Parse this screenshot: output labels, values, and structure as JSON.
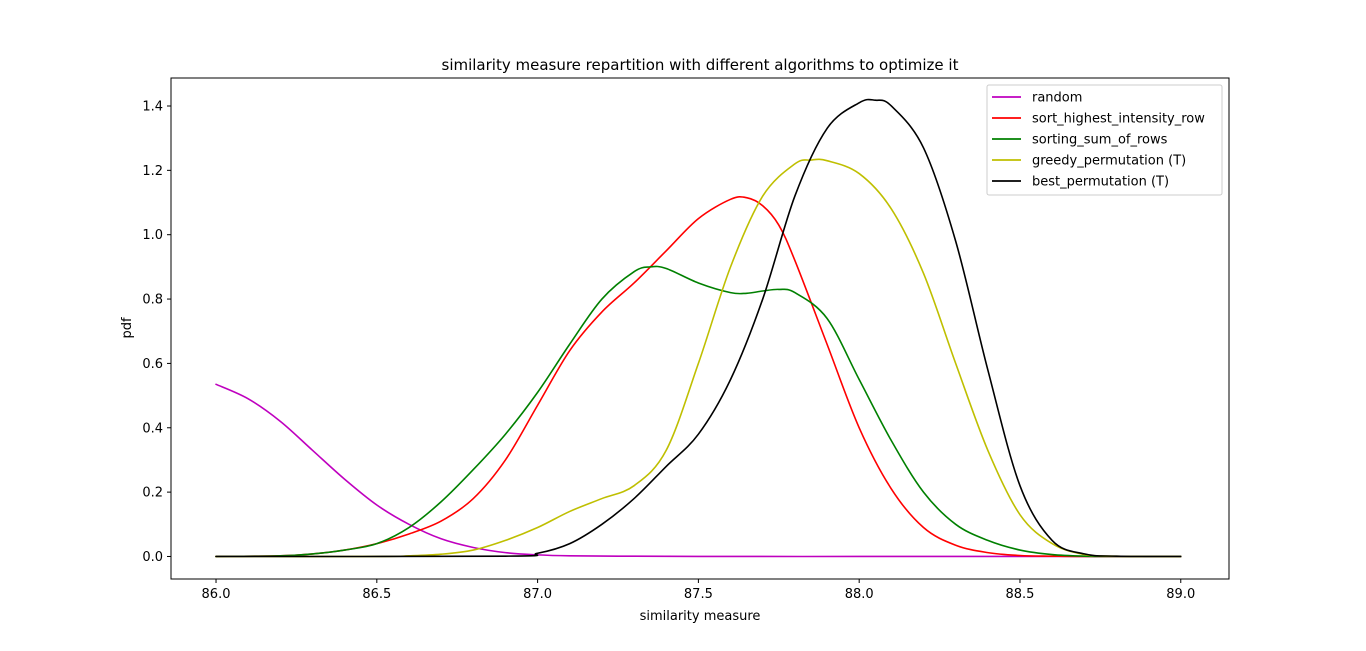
{
  "chart_data": {
    "type": "line",
    "title": "similarity measure repartition with different algorithms to optimize it",
    "xlabel": "similarity measure",
    "ylabel": "pdf",
    "xlim": [
      85.86,
      89.15
    ],
    "ylim": [
      -0.07,
      1.487
    ],
    "xticks": [
      86.0,
      86.5,
      87.0,
      87.5,
      88.0,
      88.5,
      89.0
    ],
    "xtick_labels": [
      "86.0",
      "86.5",
      "87.0",
      "87.5",
      "88.0",
      "88.5",
      "89.0"
    ],
    "yticks": [
      0.0,
      0.2,
      0.4,
      0.6,
      0.8,
      1.0,
      1.2,
      1.4
    ],
    "ytick_labels": [
      "0.0",
      "0.2",
      "0.4",
      "0.6",
      "0.8",
      "1.0",
      "1.2",
      "1.4"
    ],
    "grid": false,
    "legend_position": "top-right",
    "series": [
      {
        "name": "random",
        "color": "#bf00bf",
        "points": [
          [
            86.0,
            0.535
          ],
          [
            86.1,
            0.49
          ],
          [
            86.2,
            0.42
          ],
          [
            86.3,
            0.33
          ],
          [
            86.4,
            0.24
          ],
          [
            86.5,
            0.16
          ],
          [
            86.6,
            0.1
          ],
          [
            86.7,
            0.055
          ],
          [
            86.8,
            0.028
          ],
          [
            86.9,
            0.012
          ],
          [
            87.0,
            0.005
          ],
          [
            87.1,
            0.002
          ],
          [
            87.25,
            0.001
          ],
          [
            87.5,
            0.0
          ],
          [
            88.0,
            0.0
          ],
          [
            88.5,
            0.0
          ],
          [
            89.0,
            0.0
          ]
        ]
      },
      {
        "name": "sort_highest_intensity_row",
        "color": "#ff0000",
        "points": [
          [
            86.0,
            0.0
          ],
          [
            86.2,
            0.002
          ],
          [
            86.3,
            0.008
          ],
          [
            86.4,
            0.02
          ],
          [
            86.5,
            0.04
          ],
          [
            86.6,
            0.07
          ],
          [
            86.7,
            0.11
          ],
          [
            86.8,
            0.18
          ],
          [
            86.9,
            0.3
          ],
          [
            87.0,
            0.47
          ],
          [
            87.1,
            0.64
          ],
          [
            87.2,
            0.76
          ],
          [
            87.3,
            0.85
          ],
          [
            87.4,
            0.95
          ],
          [
            87.5,
            1.05
          ],
          [
            87.6,
            1.11
          ],
          [
            87.65,
            1.115
          ],
          [
            87.7,
            1.09
          ],
          [
            87.75,
            1.03
          ],
          [
            87.8,
            0.92
          ],
          [
            87.9,
            0.66
          ],
          [
            88.0,
            0.4
          ],
          [
            88.1,
            0.21
          ],
          [
            88.2,
            0.09
          ],
          [
            88.3,
            0.035
          ],
          [
            88.4,
            0.012
          ],
          [
            88.5,
            0.003
          ],
          [
            88.6,
            0.001
          ],
          [
            88.7,
            0.0
          ],
          [
            89.0,
            0.0
          ]
        ]
      },
      {
        "name": "sorting_sum_of_rows",
        "color": "#008000",
        "points": [
          [
            86.0,
            0.0
          ],
          [
            86.2,
            0.002
          ],
          [
            86.3,
            0.008
          ],
          [
            86.4,
            0.02
          ],
          [
            86.5,
            0.04
          ],
          [
            86.6,
            0.09
          ],
          [
            86.7,
            0.17
          ],
          [
            86.8,
            0.27
          ],
          [
            86.9,
            0.38
          ],
          [
            87.0,
            0.51
          ],
          [
            87.1,
            0.66
          ],
          [
            87.2,
            0.8
          ],
          [
            87.3,
            0.885
          ],
          [
            87.35,
            0.9
          ],
          [
            87.4,
            0.895
          ],
          [
            87.5,
            0.85
          ],
          [
            87.6,
            0.82
          ],
          [
            87.65,
            0.818
          ],
          [
            87.7,
            0.825
          ],
          [
            87.75,
            0.83
          ],
          [
            87.8,
            0.82
          ],
          [
            87.9,
            0.74
          ],
          [
            88.0,
            0.55
          ],
          [
            88.1,
            0.36
          ],
          [
            88.2,
            0.2
          ],
          [
            88.3,
            0.1
          ],
          [
            88.4,
            0.05
          ],
          [
            88.5,
            0.02
          ],
          [
            88.6,
            0.006
          ],
          [
            88.7,
            0.001
          ],
          [
            88.8,
            0.0
          ],
          [
            89.0,
            0.0
          ]
        ]
      },
      {
        "name": "greedy_permutation (T)",
        "color": "#bfbf00",
        "points": [
          [
            86.0,
            0.0
          ],
          [
            86.5,
            0.0
          ],
          [
            86.6,
            0.002
          ],
          [
            86.7,
            0.007
          ],
          [
            86.8,
            0.02
          ],
          [
            86.9,
            0.05
          ],
          [
            87.0,
            0.09
          ],
          [
            87.1,
            0.14
          ],
          [
            87.2,
            0.18
          ],
          [
            87.3,
            0.22
          ],
          [
            87.4,
            0.33
          ],
          [
            87.5,
            0.6
          ],
          [
            87.6,
            0.9
          ],
          [
            87.7,
            1.12
          ],
          [
            87.8,
            1.22
          ],
          [
            87.85,
            1.232
          ],
          [
            87.9,
            1.23
          ],
          [
            88.0,
            1.19
          ],
          [
            88.1,
            1.08
          ],
          [
            88.2,
            0.88
          ],
          [
            88.3,
            0.6
          ],
          [
            88.4,
            0.33
          ],
          [
            88.5,
            0.13
          ],
          [
            88.6,
            0.04
          ],
          [
            88.7,
            0.006
          ],
          [
            88.8,
            0.001
          ],
          [
            89.0,
            0.0
          ]
        ]
      },
      {
        "name": "best_permutation (T)",
        "color": "#000000",
        "points": [
          [
            86.0,
            0.0
          ],
          [
            86.9,
            0.001
          ],
          [
            87.0,
            0.01
          ],
          [
            87.1,
            0.04
          ],
          [
            87.2,
            0.1
          ],
          [
            87.3,
            0.18
          ],
          [
            87.4,
            0.28
          ],
          [
            87.5,
            0.38
          ],
          [
            87.6,
            0.55
          ],
          [
            87.7,
            0.8
          ],
          [
            87.8,
            1.12
          ],
          [
            87.9,
            1.33
          ],
          [
            88.0,
            1.41
          ],
          [
            88.05,
            1.418
          ],
          [
            88.1,
            1.4
          ],
          [
            88.2,
            1.27
          ],
          [
            88.3,
            0.98
          ],
          [
            88.4,
            0.58
          ],
          [
            88.5,
            0.22
          ],
          [
            88.6,
            0.05
          ],
          [
            88.7,
            0.008
          ],
          [
            88.8,
            0.001
          ],
          [
            89.0,
            0.0
          ]
        ]
      }
    ]
  }
}
